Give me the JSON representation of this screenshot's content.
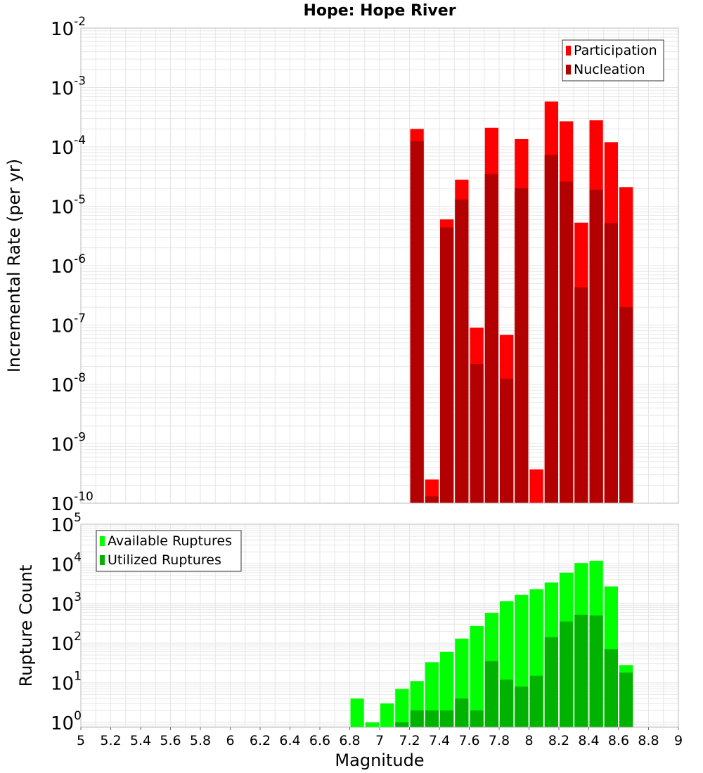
{
  "title": "Hope: Hope River",
  "colors": {
    "participation": "#ff0000",
    "nucleation": "#b30000",
    "available": "#00ff00",
    "utilized": "#00b300",
    "grid": "#e6e6e6",
    "frame": "#bbbbbb"
  },
  "chart_data": [
    {
      "type": "bar",
      "id": "rates",
      "ylabel": "Incremental Rate (per yr)",
      "yscale": "log",
      "ylim": [
        1e-10,
        0.01
      ],
      "xlim": [
        5,
        9
      ],
      "bar_width": 0.1,
      "legend_position": "top-right",
      "x": [
        7.25,
        7.35,
        7.45,
        7.55,
        7.65,
        7.75,
        7.85,
        7.95,
        8.05,
        8.15,
        8.25,
        8.35,
        8.45,
        8.55,
        8.65
      ],
      "series": [
        {
          "name": "Participation",
          "color_key": "participation",
          "values": [
            0.0002,
            2.5e-10,
            6e-06,
            2.8e-05,
            9e-08,
            0.00021,
            6.8e-08,
            0.000135,
            3.7e-10,
            0.00058,
            0.00027,
            5.3e-06,
            0.00028,
            0.00012,
            2.1e-05
          ]
        },
        {
          "name": "Nucleation",
          "color_key": "nucleation",
          "values": [
            0.000125,
            1.3e-10,
            4.4e-06,
            1.3e-05,
            2.2e-08,
            3.5e-05,
            1.25e-08,
            2e-05,
            1e-10,
            7.3e-05,
            2.6e-05,
            4.3e-07,
            1.9e-05,
            5.2e-06,
            2e-07
          ]
        }
      ],
      "y_tick_labels": [
        {
          "base": "10",
          "exp": "-10"
        },
        {
          "base": "10",
          "exp": "-9"
        },
        {
          "base": "10",
          "exp": "-8"
        },
        {
          "base": "10",
          "exp": "-7"
        },
        {
          "base": "10",
          "exp": "-6"
        },
        {
          "base": "10",
          "exp": "-5"
        },
        {
          "base": "10",
          "exp": "-4"
        },
        {
          "base": "10",
          "exp": "-3"
        },
        {
          "base": "10",
          "exp": "-2"
        }
      ]
    },
    {
      "type": "bar",
      "id": "counts",
      "ylabel": "Rupture Count",
      "xlabel": "Magnitude",
      "yscale": "log",
      "ylim": [
        0.75,
        100000
      ],
      "xlim": [
        5,
        9
      ],
      "bar_width": 0.1,
      "legend_position": "top-left",
      "x": [
        6.85,
        6.95,
        7.05,
        7.15,
        7.25,
        7.35,
        7.45,
        7.55,
        7.65,
        7.75,
        7.85,
        7.95,
        8.05,
        8.15,
        8.25,
        8.35,
        8.45,
        8.55,
        8.65
      ],
      "series": [
        {
          "name": "Available Ruptures",
          "color_key": "available",
          "values": [
            4,
            1,
            3,
            7,
            11,
            33,
            60,
            130,
            270,
            580,
            1150,
            1650,
            2300,
            3400,
            6000,
            10500,
            12000,
            2700,
            28
          ]
        },
        {
          "name": "Utilized Ruptures",
          "color_key": "utilized",
          "values": [
            0,
            0,
            0,
            1,
            2,
            2,
            2,
            4,
            2,
            35,
            12,
            8,
            15,
            140,
            350,
            520,
            500,
            70,
            18
          ]
        }
      ],
      "x_tick_labels": [
        "5",
        "5.2",
        "5.4",
        "5.6",
        "5.8",
        "6",
        "6.2",
        "6.4",
        "6.6",
        "6.8",
        "7",
        "7.2",
        "7.4",
        "7.6",
        "7.8",
        "8",
        "8.2",
        "8.4",
        "8.6",
        "8.8",
        "9"
      ],
      "y_tick_labels": [
        {
          "base": "10",
          "exp": "0"
        },
        {
          "base": "10",
          "exp": "1"
        },
        {
          "base": "10",
          "exp": "2"
        },
        {
          "base": "10",
          "exp": "3"
        },
        {
          "base": "10",
          "exp": "4"
        },
        {
          "base": "10",
          "exp": "5"
        }
      ]
    }
  ]
}
